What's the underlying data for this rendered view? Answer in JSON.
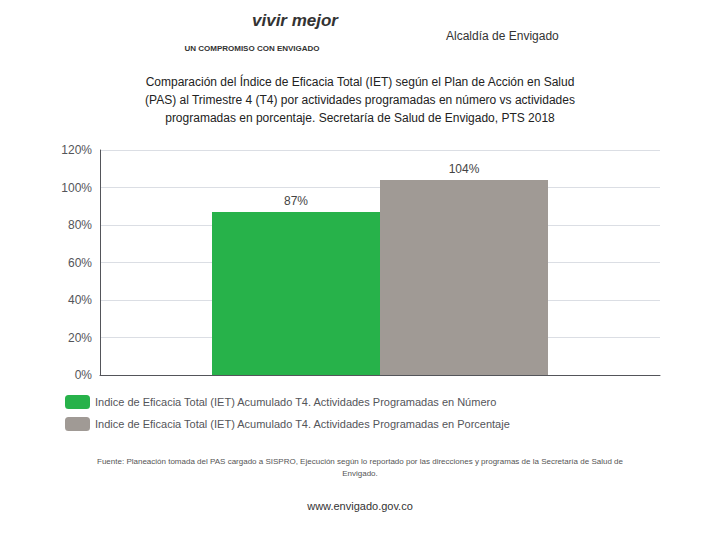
{
  "chart_data": {
    "type": "bar",
    "title": "Comparación del Índice de Eficacia Total (IET) según el Plan de Acción en Salud\n(PAS) al Trimestre 4 (T4) por actividades programadas en número vs actividades\nprogramadas en porcentaje. Secretaría de Salud de Envigado, PTS 2018",
    "categories": [
      null
    ],
    "series": [
      {
        "name": "Indice de Eficacia Total (IET) Acumulado T4. Actividades Programadas en Número",
        "color": "#27b24a",
        "values": [
          87
        ],
        "value_labels": [
          "87%"
        ]
      },
      {
        "name": "Indice de Eficacia Total (IET) Acumulado T4. Actividades Programadas en Porcentaje",
        "color": "#a09a95",
        "values": [
          104
        ],
        "value_labels": [
          "104%"
        ]
      }
    ],
    "ylim": [
      0,
      120
    ],
    "yticks": [
      {
        "value": 0,
        "label": "0%"
      },
      {
        "value": 20,
        "label": "20%"
      },
      {
        "value": 40,
        "label": "40%"
      },
      {
        "value": 60,
        "label": "60%"
      },
      {
        "value": 80,
        "label": "80%"
      },
      {
        "value": 100,
        "label": "100%"
      },
      {
        "value": 120,
        "label": "120%"
      }
    ],
    "grid": true,
    "legend": "bottom",
    "data_labels": true,
    "tick_labels": "y",
    "annotations": [
      "vivir mejor",
      "UN COMPROMISO CON ENVIGADO",
      "Alcaldía de Envigado",
      "Fuente: Planeación tomada del PAS cargado a SISPRO, Ejecución según lo reportado por las direcciones y programas de la Secretaría de Salud de\nEnvigado.",
      "www.envigado.gov.co"
    ]
  }
}
